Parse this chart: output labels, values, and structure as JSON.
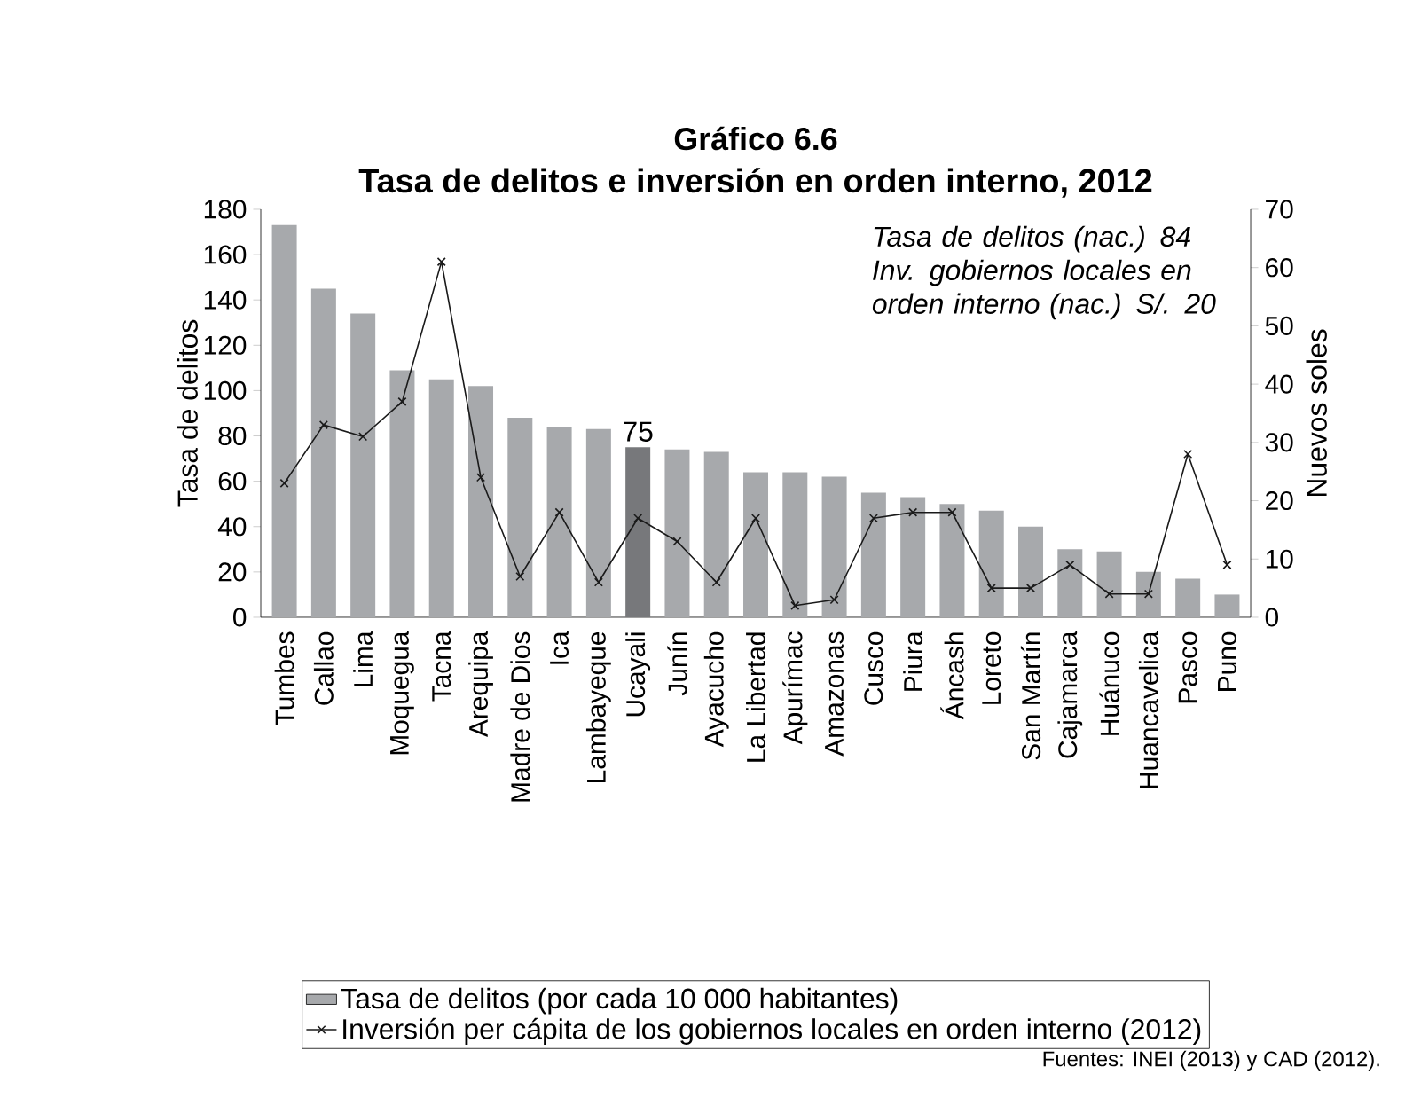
{
  "chart_data": {
    "type": "bar",
    "title": "Gráfico 6.6",
    "subtitle": "Tasa de delitos e inversión en orden interno, 2012",
    "ylabel": "Tasa de delitos",
    "y2label": "Nuevos soles",
    "categories": [
      "Tumbes",
      "Callao",
      "Lima",
      "Moquegua",
      "Tacna",
      "Arequipa",
      "Madre de Dios",
      "Ica",
      "Lambayeque",
      "Ucayali",
      "Junín",
      "Ayacucho",
      "La Libertad",
      "Apurímac",
      "Amazonas",
      "Cusco",
      "Piura",
      "Áncash",
      "Loreto",
      "San Martín",
      "Cajamarca",
      "Huánuco",
      "Huancavelica",
      "Pasco",
      "Puno"
    ],
    "series": [
      {
        "name": "Tasa de delitos (por cada 10 000 habitantes)",
        "color": "#a7a9ac",
        "colors": [
          "#a7a9ac",
          "#a7a9ac",
          "#a7a9ac",
          "#a7a9ac",
          "#a7a9ac",
          "#a7a9ac",
          "#a7a9ac",
          "#a7a9ac",
          "#a7a9ac",
          "#77787b",
          "#a7a9ac",
          "#a7a9ac",
          "#a7a9ac",
          "#a7a9ac",
          "#a7a9ac",
          "#a7a9ac",
          "#a7a9ac",
          "#a7a9ac",
          "#a7a9ac",
          "#a7a9ac",
          "#a7a9ac",
          "#a7a9ac",
          "#a7a9ac",
          "#a7a9ac",
          "#a7a9ac"
        ],
        "values": [
          173,
          145,
          134,
          109,
          105,
          102,
          88,
          84,
          83,
          75,
          74,
          73,
          64,
          64,
          62,
          55,
          53,
          50,
          47,
          40,
          30,
          29,
          20,
          17,
          10
        ],
        "value_labels": [
          null,
          null,
          null,
          null,
          null,
          null,
          null,
          null,
          null,
          "75",
          null,
          null,
          null,
          null,
          null,
          null,
          null,
          null,
          null,
          null,
          null,
          null,
          null,
          null,
          null
        ]
      },
      {
        "name": "Inversión per cápita de los gobiernos locales en orden interno (2012)",
        "type": "line",
        "axis": "y2",
        "color": "#1a1a1a",
        "values": [
          23,
          33,
          31,
          37,
          61,
          24,
          7,
          18,
          6,
          17,
          13,
          6,
          17,
          2,
          3,
          17,
          18,
          18,
          5,
          5,
          9,
          4,
          4,
          28,
          9
        ]
      }
    ],
    "ylim": [
      0,
      180
    ],
    "yticks": [
      0,
      20,
      40,
      60,
      80,
      100,
      120,
      140,
      160,
      180
    ],
    "y2lim": [
      0,
      70
    ],
    "y2ticks": [
      0,
      10,
      20,
      30,
      40,
      50,
      60,
      70
    ],
    "marker": "cross",
    "legend": "bottom",
    "annotations": [
      "Tasa de delitos (nac.) 84 Inv. gobiernos locales en orden interno (nac.) S/. 20",
      "Fuentes: INEI (2013) y CAD (2012)."
    ]
  }
}
